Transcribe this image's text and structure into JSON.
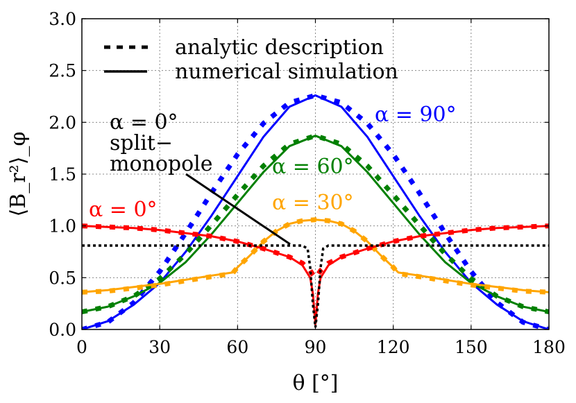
{
  "chart_data": {
    "type": "line",
    "xlabel": "θ [°]",
    "ylabel": "⟨B_r²⟩_φ",
    "xlim": [
      0,
      180
    ],
    "ylim": [
      0,
      3.0
    ],
    "xticks": [
      "0",
      "30",
      "60",
      "90",
      "120",
      "150",
      "180"
    ],
    "yticks": [
      "0.0",
      "0.5",
      "1.0",
      "1.5",
      "2.0",
      "2.5",
      "3.0"
    ],
    "grid": true,
    "legend": {
      "placement": "top-left",
      "entries": [
        {
          "label": "analytic description",
          "style": "dotted"
        },
        {
          "label": "numerical simulation",
          "style": "solid"
        }
      ]
    },
    "annotations": [
      {
        "text": "α = 0°",
        "color": "#ff0000"
      },
      {
        "text": "α = 30°",
        "color": "#ffa500"
      },
      {
        "text": "α = 60°",
        "color": "#008000"
      },
      {
        "text": "α = 90°",
        "color": "#0000ff"
      },
      {
        "text": "α = 0°",
        "color": "#000000"
      },
      {
        "text": "split−",
        "color": "#000000"
      },
      {
        "text": "monopole",
        "color": "#000000"
      }
    ],
    "series": [
      {
        "alpha": "90°",
        "color": "#0000ff",
        "x": [
          0,
          10,
          20,
          30,
          40,
          50,
          60,
          70,
          80,
          90,
          100,
          110,
          120,
          130,
          140,
          150,
          160,
          170,
          180
        ],
        "numerical": [
          0.0,
          0.08,
          0.24,
          0.45,
          0.75,
          1.1,
          1.48,
          1.86,
          2.15,
          2.26,
          2.15,
          1.86,
          1.48,
          1.1,
          0.75,
          0.45,
          0.24,
          0.08,
          0.0
        ],
        "analytic": [
          0.0,
          0.07,
          0.26,
          0.56,
          0.93,
          1.32,
          1.69,
          1.99,
          2.19,
          2.26,
          2.19,
          1.99,
          1.69,
          1.32,
          0.93,
          0.56,
          0.26,
          0.07,
          0.0
        ]
      },
      {
        "alpha": "60°",
        "color": "#008000",
        "x": [
          0,
          10,
          20,
          30,
          40,
          50,
          60,
          70,
          80,
          90,
          100,
          110,
          120,
          130,
          140,
          150,
          160,
          170,
          180
        ],
        "numerical": [
          0.17,
          0.22,
          0.32,
          0.45,
          0.65,
          0.92,
          1.22,
          1.52,
          1.77,
          1.87,
          1.77,
          1.52,
          1.22,
          0.92,
          0.65,
          0.45,
          0.32,
          0.22,
          0.17
        ],
        "analytic": [
          0.17,
          0.22,
          0.32,
          0.49,
          0.73,
          1.01,
          1.3,
          1.58,
          1.79,
          1.87,
          1.79,
          1.58,
          1.3,
          1.01,
          0.73,
          0.49,
          0.32,
          0.22,
          0.17
        ]
      },
      {
        "alpha": "30°",
        "color": "#ffa500",
        "x": [
          0,
          10,
          20,
          30,
          40,
          50,
          58,
          60,
          65,
          70,
          75,
          80,
          85,
          90,
          95,
          100,
          105,
          110,
          115,
          120,
          122,
          130,
          140,
          150,
          160,
          170,
          180
        ],
        "numerical": [
          0.36,
          0.38,
          0.41,
          0.44,
          0.48,
          0.52,
          0.55,
          0.6,
          0.72,
          0.85,
          0.95,
          1.02,
          1.05,
          1.06,
          1.05,
          1.02,
          0.95,
          0.85,
          0.72,
          0.6,
          0.55,
          0.52,
          0.48,
          0.44,
          0.41,
          0.38,
          0.36
        ],
        "analytic": [
          0.36,
          0.37,
          0.4,
          0.43,
          0.47,
          0.51,
          0.54,
          0.6,
          0.72,
          0.85,
          0.95,
          1.02,
          1.05,
          1.06,
          1.05,
          1.02,
          0.95,
          0.85,
          0.72,
          0.6,
          0.54,
          0.51,
          0.47,
          0.43,
          0.4,
          0.37,
          0.36
        ]
      },
      {
        "alpha": "0°",
        "color": "#ff0000",
        "x": [
          0,
          10,
          20,
          30,
          40,
          50,
          60,
          70,
          80,
          85,
          88,
          89,
          90,
          91,
          92,
          95,
          100,
          110,
          120,
          130,
          140,
          150,
          160,
          170,
          180
        ],
        "numerical": [
          1.0,
          0.99,
          0.98,
          0.96,
          0.93,
          0.9,
          0.85,
          0.78,
          0.7,
          0.62,
          0.5,
          0.35,
          0.05,
          0.35,
          0.5,
          0.62,
          0.7,
          0.78,
          0.85,
          0.9,
          0.93,
          0.96,
          0.98,
          0.99,
          1.0
        ],
        "analytic": [
          1.0,
          0.99,
          0.98,
          0.96,
          0.93,
          0.9,
          0.85,
          0.78,
          0.7,
          0.64,
          0.57,
          0.53,
          0.5,
          0.53,
          0.57,
          0.64,
          0.7,
          0.78,
          0.85,
          0.9,
          0.93,
          0.96,
          0.98,
          0.99,
          1.0
        ]
      },
      {
        "alpha": "0° split-monopole",
        "color": "#000000",
        "x": [
          0,
          85,
          87,
          88,
          89,
          90,
          91,
          92,
          93,
          95,
          180
        ],
        "analytic": [
          0.81,
          0.81,
          0.78,
          0.6,
          0.25,
          0.02,
          0.25,
          0.6,
          0.78,
          0.81,
          0.81
        ]
      }
    ]
  }
}
